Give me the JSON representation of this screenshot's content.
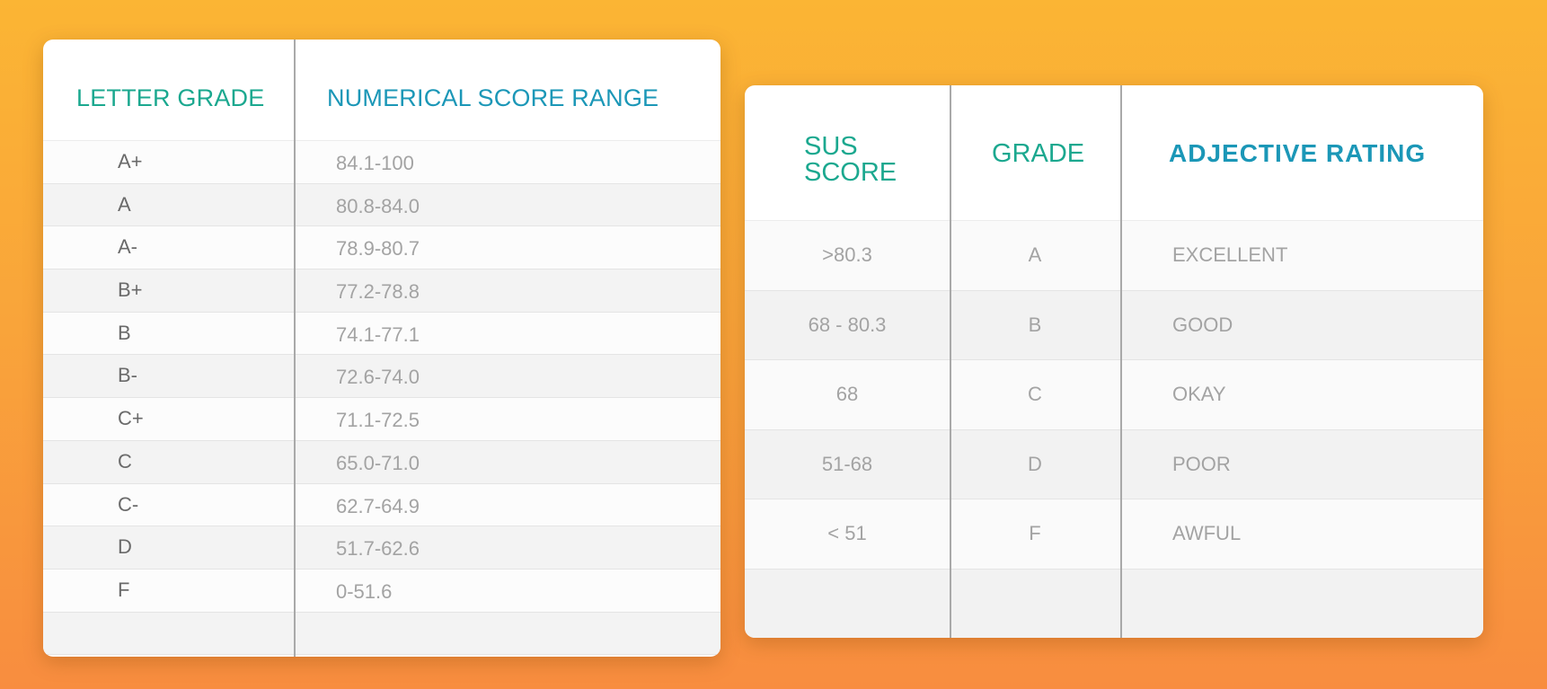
{
  "grade_table": {
    "headers": {
      "letter": "LETTER GRADE",
      "range": "NUMERICAL SCORE RANGE"
    },
    "rows": [
      {
        "grade": "A+",
        "range": "84.1-100"
      },
      {
        "grade": "A",
        "range": "80.8-84.0"
      },
      {
        "grade": "A-",
        "range": "78.9-80.7"
      },
      {
        "grade": "B+",
        "range": "77.2-78.8"
      },
      {
        "grade": "B",
        "range": "74.1-77.1"
      },
      {
        "grade": "B-",
        "range": "72.6-74.0"
      },
      {
        "grade": "C+",
        "range": "71.1-72.5"
      },
      {
        "grade": "C",
        "range": "65.0-71.0"
      },
      {
        "grade": "C-",
        "range": "62.7-64.9"
      },
      {
        "grade": "D",
        "range": "51.7-62.6"
      },
      {
        "grade": "F",
        "range": "0-51.6"
      },
      {
        "grade": "",
        "range": ""
      }
    ]
  },
  "rating_table": {
    "headers": {
      "score": "SUS SCORE",
      "grade": "GRADE",
      "adjective": "ADJECTIVE RATING"
    },
    "rows": [
      {
        "score": ">80.3",
        "grade": "A",
        "adjective": "EXCELLENT"
      },
      {
        "score": "68 - 80.3",
        "grade": "B",
        "adjective": "GOOD"
      },
      {
        "score": "68",
        "grade": "C",
        "adjective": "OKAY"
      },
      {
        "score": "51-68",
        "grade": "D",
        "adjective": "POOR"
      },
      {
        "score": "< 51",
        "grade": "F",
        "adjective": "AWFUL"
      },
      {
        "score": "",
        "grade": "",
        "adjective": ""
      }
    ]
  },
  "colors": {
    "background_top": "#fbb534",
    "background_bottom": "#f88d3f",
    "teal_header": "#1ba88f",
    "blue_header": "#1b97b7",
    "cell_text": "#a3a3a3"
  }
}
